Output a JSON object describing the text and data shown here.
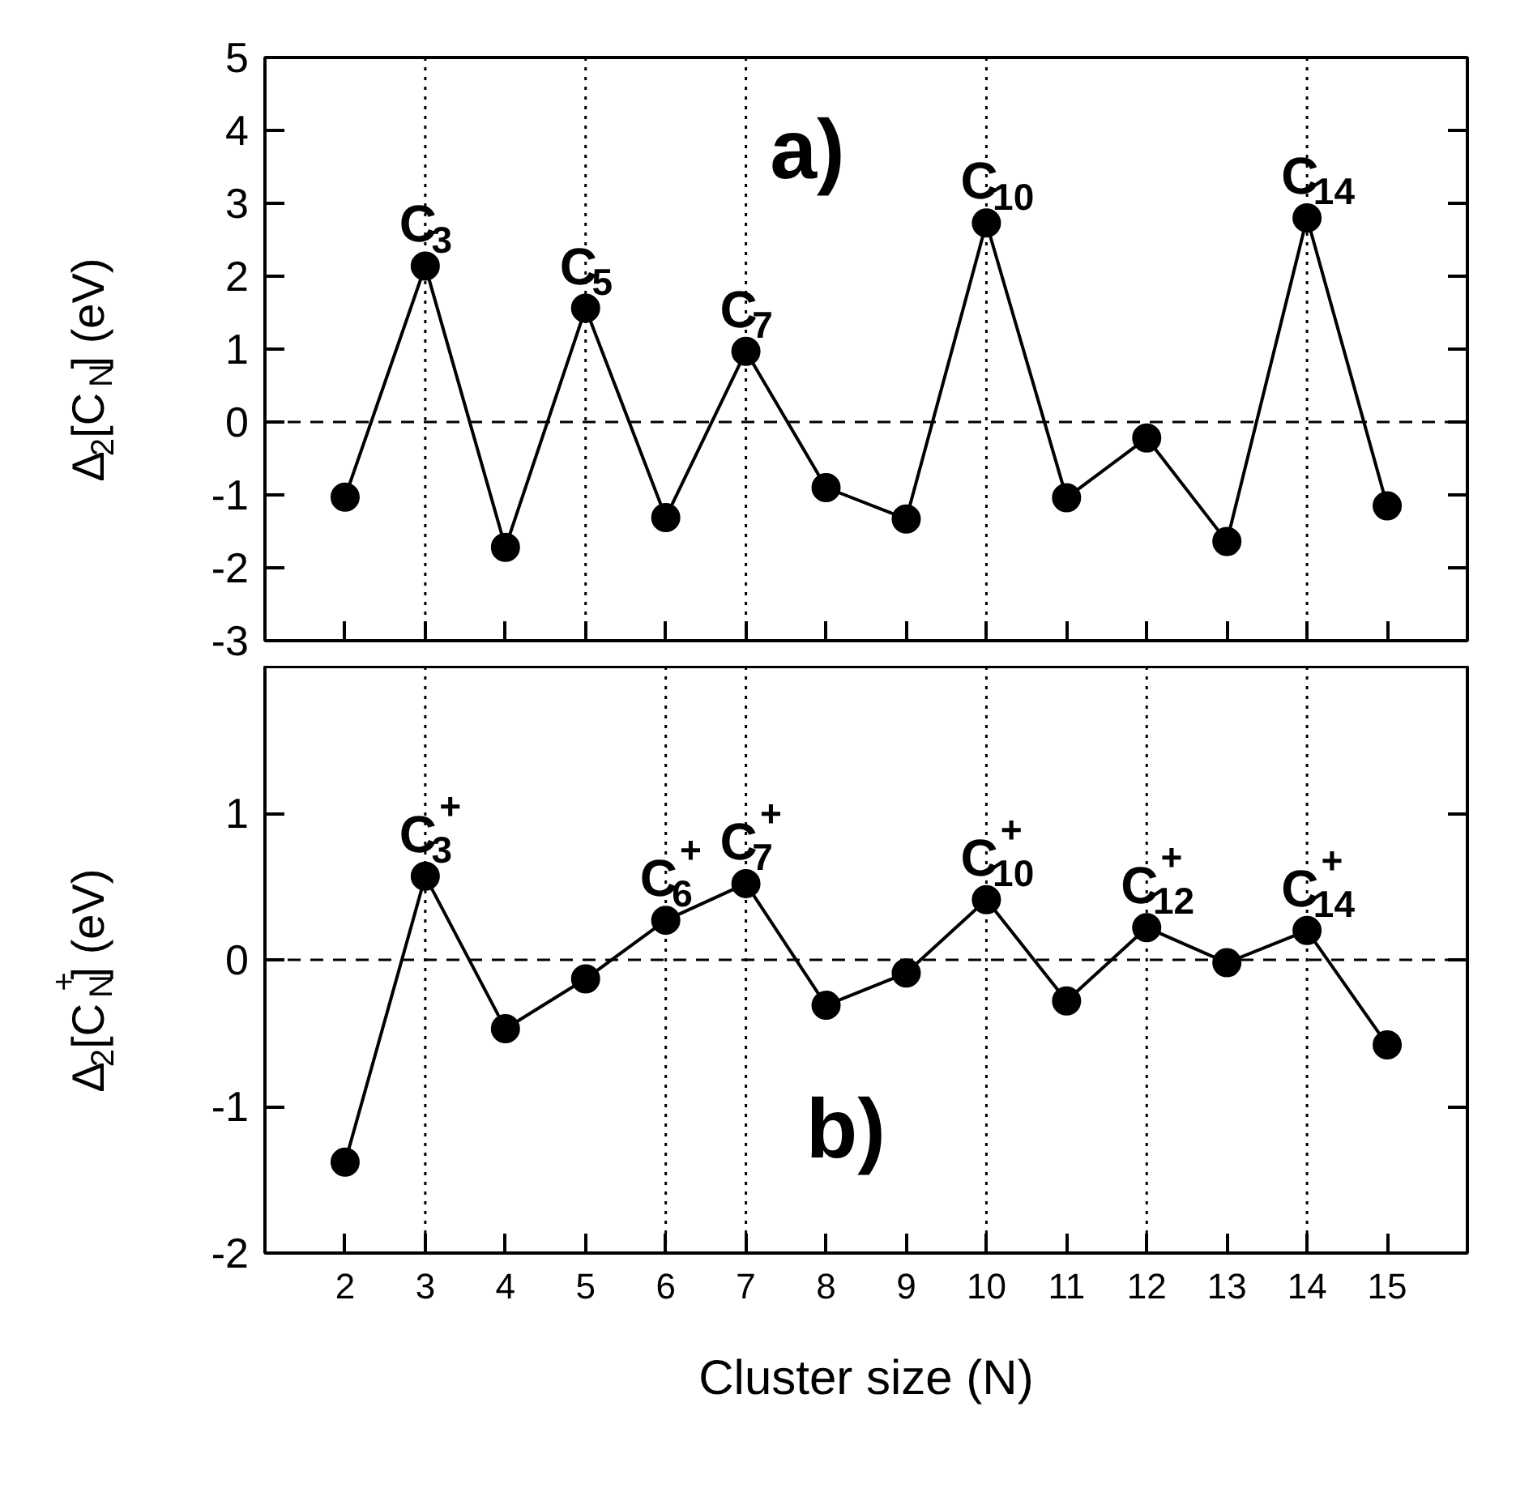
{
  "chart_data": [
    {
      "type": "line",
      "ylabel": "Δ$_{2}$[C$_{N}$] (eV)",
      "x": [
        2,
        3,
        4,
        5,
        6,
        7,
        8,
        9,
        10,
        11,
        12,
        13,
        14,
        15
      ],
      "xlim": [
        1,
        16
      ],
      "xticks": [
        2,
        3,
        4,
        5,
        6,
        7,
        8,
        9,
        10,
        11,
        12,
        13,
        14,
        15
      ],
      "ylim": [
        -3,
        5
      ],
      "yticks": [
        -3,
        -2,
        -1,
        0,
        1,
        2,
        3,
        4,
        5
      ],
      "tick_labels": "y",
      "marker": "circle",
      "line_style": "solid",
      "grid": false,
      "series": [
        {
          "color": "#000000",
          "values": [
            -1.03,
            2.14,
            -1.72,
            1.56,
            -1.31,
            0.97,
            -0.9,
            -1.33,
            2.73,
            -1.04,
            -0.22,
            -1.64,
            2.8,
            -1.15
          ]
        }
      ],
      "ref_lines": [
        {
          "axis": "y",
          "value": 0,
          "line_style": "dashed"
        },
        {
          "axis": "x",
          "value": 3,
          "line_style": "dotted"
        },
        {
          "axis": "x",
          "value": 5,
          "line_style": "dotted"
        },
        {
          "axis": "x",
          "value": 7,
          "line_style": "dotted"
        },
        {
          "axis": "x",
          "value": 10,
          "line_style": "dotted"
        },
        {
          "axis": "x",
          "value": 14,
          "line_style": "dotted"
        }
      ],
      "annotations": [
        "a)",
        {
          "text": "C$_{3}$",
          "x": 3,
          "y": 2.14
        },
        {
          "text": "C$_{5}$",
          "x": 5,
          "y": 1.56
        },
        {
          "text": "C$_{7}$",
          "x": 7,
          "y": 0.97
        },
        {
          "text": "C$_{10}$",
          "x": 10,
          "y": 2.73
        },
        {
          "text": "C$_{14}$",
          "x": 14,
          "y": 2.8
        }
      ]
    },
    {
      "type": "line",
      "ylabel": "Δ$_{2}$[C$_{N}$$^{+}$] (eV)",
      "xlabel": "Cluster size (N)",
      "x": [
        2,
        3,
        4,
        5,
        6,
        7,
        8,
        9,
        10,
        11,
        12,
        13,
        14,
        15
      ],
      "xlim": [
        1,
        16
      ],
      "xticks": [
        2,
        3,
        4,
        5,
        6,
        7,
        8,
        9,
        10,
        11,
        12,
        13,
        14,
        15
      ],
      "ylim": [
        -2,
        2
      ],
      "yticks": [
        -2,
        -1,
        0,
        1
      ],
      "marker": "circle",
      "line_style": "solid",
      "grid": false,
      "series": [
        {
          "color": "#000000",
          "values": [
            -1.38,
            0.57,
            -0.47,
            -0.13,
            0.27,
            0.52,
            -0.31,
            -0.09,
            0.41,
            -0.28,
            0.22,
            -0.02,
            0.2,
            -0.58
          ]
        }
      ],
      "ref_lines": [
        {
          "axis": "y",
          "value": 0,
          "line_style": "dashed"
        },
        {
          "axis": "x",
          "value": 3,
          "line_style": "dotted"
        },
        {
          "axis": "x",
          "value": 6,
          "line_style": "dotted"
        },
        {
          "axis": "x",
          "value": 7,
          "line_style": "dotted"
        },
        {
          "axis": "x",
          "value": 10,
          "line_style": "dotted"
        },
        {
          "axis": "x",
          "value": 12,
          "line_style": "dotted"
        },
        {
          "axis": "x",
          "value": 14,
          "line_style": "dotted"
        }
      ],
      "annotations": [
        "b)",
        {
          "text": "C$_{3}$$^{+}$",
          "x": 3,
          "y": 0.57
        },
        {
          "text": "C$_{6}$$^{+}$",
          "x": 6,
          "y": 0.27
        },
        {
          "text": "C$_{7}$$^{+}$",
          "x": 7,
          "y": 0.52
        },
        {
          "text": "C$_{10}$$^{+}$",
          "x": 10,
          "y": 0.41
        },
        {
          "text": "C$_{12}$$^{+}$",
          "x": 12,
          "y": 0.22
        },
        {
          "text": "C$_{14}$$^{+}$",
          "x": 14,
          "y": 0.2
        }
      ]
    }
  ]
}
